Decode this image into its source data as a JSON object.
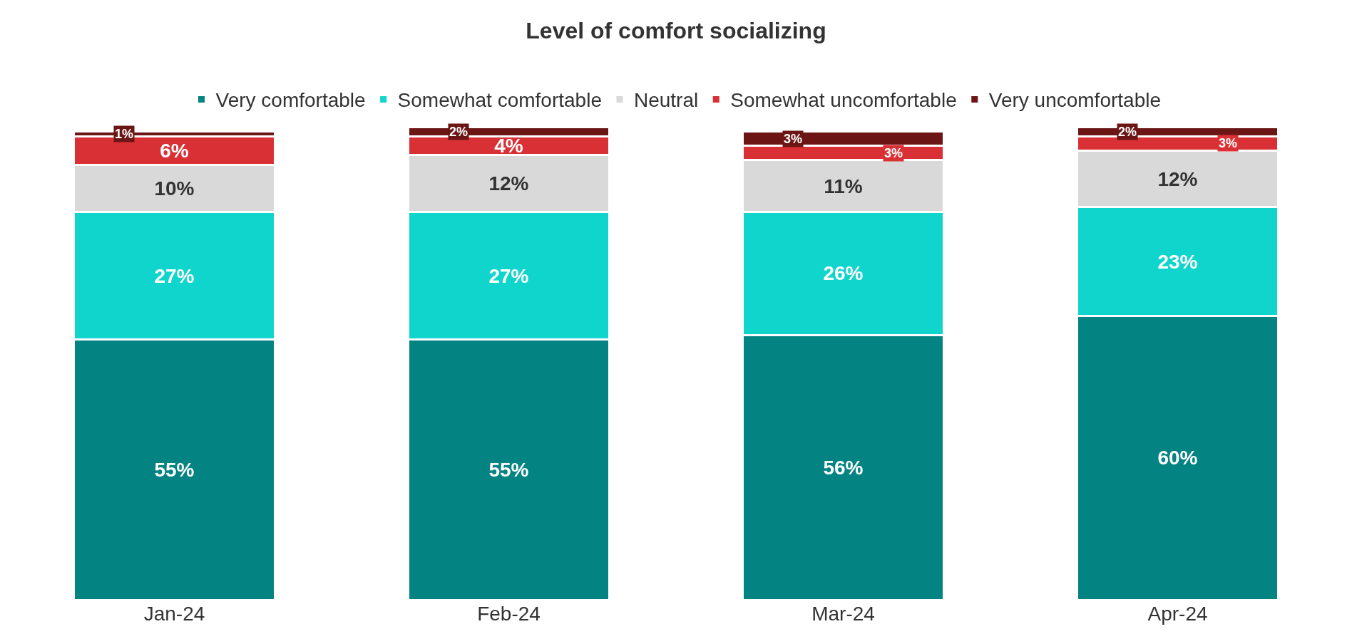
{
  "chart_data": {
    "type": "bar",
    "title": "Level of comfort socializing",
    "stacked": true,
    "legend": "top",
    "tick_labels": "x",
    "categories": [
      "Jan-24",
      "Feb-24",
      "Mar-24",
      "Apr-24"
    ],
    "series": [
      {
        "name": "Very comfortable",
        "color": "#038381",
        "values": [
          55,
          55,
          56,
          60
        ],
        "value_labels": [
          "55%",
          "55%",
          "56%",
          "60%"
        ]
      },
      {
        "name": "Somewhat comfortable",
        "color": "#10d5cd",
        "values": [
          27,
          27,
          26,
          23
        ],
        "value_labels": [
          "27%",
          "27%",
          "26%",
          "23%"
        ]
      },
      {
        "name": "Neutral",
        "color": "#d9d9d9",
        "values": [
          10,
          12,
          11,
          12
        ],
        "value_labels": [
          "10%",
          "12%",
          "11%",
          "12%"
        ]
      },
      {
        "name": "Somewhat uncomfortable",
        "color": "#d93035",
        "values": [
          6,
          4,
          3,
          3
        ],
        "value_labels": [
          "6%",
          "4%",
          "3%",
          "3%"
        ]
      },
      {
        "name": "Very uncomfortable",
        "color": "#6b1515",
        "values": [
          1,
          2,
          3,
          2
        ],
        "value_labels": [
          "1%",
          "2%",
          "3%",
          "2%"
        ]
      }
    ]
  }
}
